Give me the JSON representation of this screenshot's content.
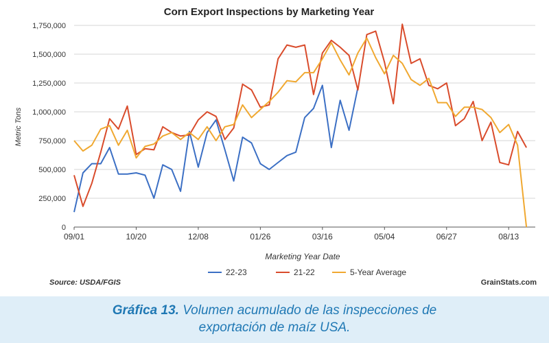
{
  "chart_data": {
    "type": "line",
    "title": "Corn Export Inspections by Marketing Year",
    "xlabel": "Marketing Year Date",
    "ylabel": "Metric Tons",
    "x_ticks": [
      "09/01",
      "10/20",
      "12/08",
      "01/26",
      "03/16",
      "05/04",
      "06/27",
      "08/13"
    ],
    "y_ticks": [
      "0",
      "250,000",
      "500,000",
      "750,000",
      "1,000,000",
      "1,250,000",
      "1,500,000",
      "1,750,000"
    ],
    "ylim": [
      0,
      1750000
    ],
    "x_range_weeks": [
      0,
      52
    ],
    "grid": true,
    "legend_position": "bottom",
    "series": [
      {
        "name": "22-23",
        "color": "#3b6fc4",
        "values": [
          130000,
          470000,
          550000,
          550000,
          690000,
          460000,
          460000,
          470000,
          450000,
          250000,
          540000,
          500000,
          310000,
          830000,
          520000,
          820000,
          930000,
          670000,
          400000,
          780000,
          730000,
          550000,
          500000,
          560000,
          620000,
          650000,
          950000,
          1030000,
          1230000,
          690000,
          1100000,
          840000,
          1210000
        ]
      },
      {
        "name": "21-22",
        "color": "#d94b2b",
        "values": [
          450000,
          180000,
          380000,
          650000,
          940000,
          850000,
          1050000,
          630000,
          680000,
          670000,
          870000,
          820000,
          790000,
          800000,
          930000,
          1000000,
          960000,
          760000,
          860000,
          1240000,
          1190000,
          1040000,
          1060000,
          1460000,
          1580000,
          1560000,
          1580000,
          1150000,
          1510000,
          1620000,
          1560000,
          1490000,
          1190000,
          1670000,
          1700000,
          1430000,
          1070000,
          1760000,
          1420000,
          1460000,
          1230000,
          1200000,
          1250000,
          880000,
          940000,
          1090000,
          750000,
          910000,
          560000,
          540000,
          830000,
          690000
        ]
      },
      {
        "name": "5-Year Average",
        "color": "#f0a830",
        "values": [
          750000,
          660000,
          710000,
          850000,
          880000,
          710000,
          840000,
          600000,
          700000,
          720000,
          790000,
          820000,
          760000,
          820000,
          760000,
          870000,
          750000,
          870000,
          890000,
          1060000,
          950000,
          1020000,
          1090000,
          1170000,
          1270000,
          1260000,
          1340000,
          1340000,
          1460000,
          1600000,
          1450000,
          1320000,
          1510000,
          1640000,
          1470000,
          1330000,
          1490000,
          1420000,
          1280000,
          1230000,
          1290000,
          1080000,
          1080000,
          960000,
          1040000,
          1040000,
          1020000,
          950000,
          820000,
          890000,
          710000,
          0
        ]
      }
    ]
  },
  "source": "Source: USDA/FGIS",
  "brand": "GrainStats.com",
  "caption": {
    "lead": "Gráfica 13.",
    "rest": "Volumen acumulado de las inspecciones de",
    "line2": "exportación de maíz USA."
  }
}
